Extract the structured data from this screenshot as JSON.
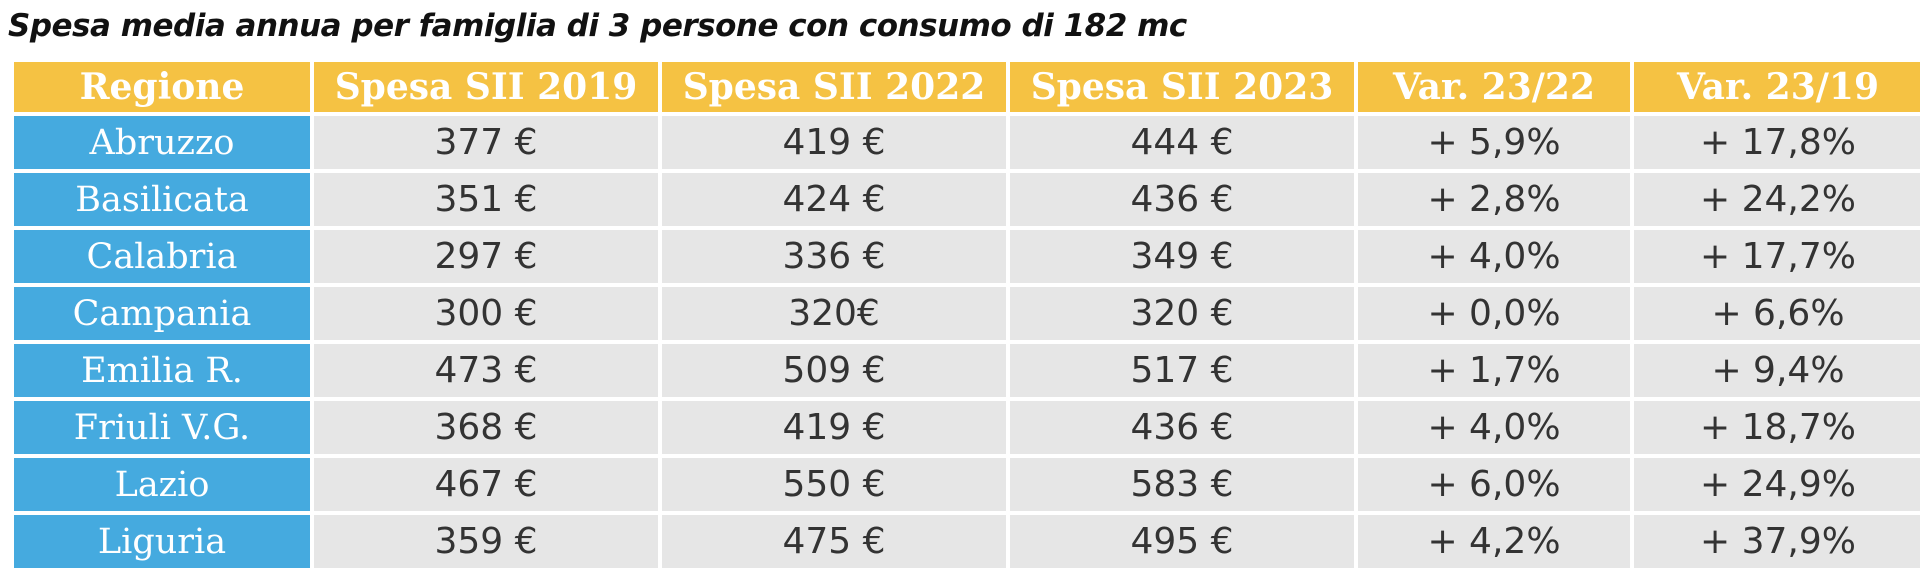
{
  "title": "Spesa media annua per famiglia di 3 persone con consumo di 182 mc",
  "colors": {
    "header_bg": "#f5c243",
    "region_bg": "#45aadf",
    "cell_bg": "#e6e6e6",
    "header_text": "#ffffff",
    "cell_text": "#333333"
  },
  "chart_data": {
    "type": "table",
    "title": "Spesa media annua per famiglia di 3 persone con consumo di 182 mc",
    "columns": [
      "Regione",
      "Spesa SII 2019",
      "Spesa SII 2022",
      "Spesa SII 2023",
      "Var. 23/22",
      "Var. 23/19"
    ],
    "rows": [
      [
        "Abruzzo",
        "377 €",
        "419 €",
        "444 €",
        "+ 5,9%",
        "+ 17,8%"
      ],
      [
        "Basilicata",
        "351 €",
        "424 €",
        "436 €",
        "+ 2,8%",
        "+ 24,2%"
      ],
      [
        "Calabria",
        "297 €",
        "336 €",
        "349 €",
        "+ 4,0%",
        "+ 17,7%"
      ],
      [
        "Campania",
        "300 €",
        "320€",
        "320 €",
        "+ 0,0%",
        "+ 6,6%"
      ],
      [
        "Emilia R.",
        "473 €",
        "509 €",
        "517 €",
        "+ 1,7%",
        "+ 9,4%"
      ],
      [
        "Friuli V.G.",
        "368 €",
        "419 €",
        "436 €",
        "+ 4,0%",
        "+ 18,7%"
      ],
      [
        "Lazio",
        "467 €",
        "550 €",
        "583 €",
        "+ 6,0%",
        "+ 24,9%"
      ],
      [
        "Liguria",
        "359 €",
        "475 €",
        "495 €",
        "+ 4,2%",
        "+ 37,9%"
      ]
    ]
  }
}
